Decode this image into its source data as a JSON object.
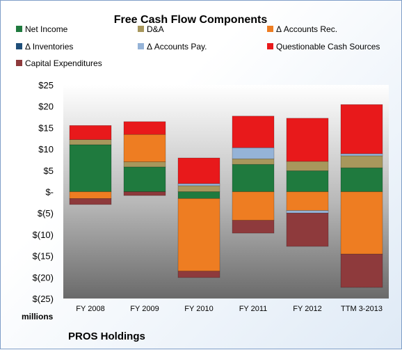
{
  "chart_data": {
    "type": "bar",
    "stacked": true,
    "title": "Free Cash Flow Components",
    "ylabel": "millions",
    "footer": "PROS Holdings",
    "categories": [
      "FY 2008",
      "FY 2009",
      "FY 2010",
      "FY 2011",
      "FY 2012",
      "TTM 3-2013"
    ],
    "ylim": [
      -25,
      25
    ],
    "yticks": [
      25,
      20,
      15,
      10,
      5,
      0,
      -5,
      -10,
      -15,
      -20,
      -25
    ],
    "ytick_labels": [
      "$25",
      "$20",
      "$15",
      "$10",
      "$5",
      "$-",
      "$(5)",
      "$(10)",
      "$(15)",
      "$(20)",
      "$(25)"
    ],
    "grid": false,
    "legend_position": "top",
    "series": [
      {
        "name": "Net Income",
        "color": "#1f7a3e",
        "values": [
          11.0,
          5.8,
          -1.6,
          6.4,
          4.9,
          5.6
        ]
      },
      {
        "name": "D&A",
        "color": "#a8975c",
        "values": [
          1.2,
          1.2,
          1.4,
          1.3,
          2.2,
          2.8
        ]
      },
      {
        "name": "Δ Accounts Rec.",
        "color": "#ee7d22",
        "values": [
          -1.6,
          6.4,
          -17.0,
          -6.7,
          -4.4,
          -14.6
        ]
      },
      {
        "name": "Δ Inventories",
        "color": "#1f4e79",
        "values": [
          0,
          0,
          0,
          0,
          0,
          0
        ]
      },
      {
        "name": "Δ Accounts Pay.",
        "color": "#95b3d7",
        "values": [
          0,
          0,
          0.5,
          2.6,
          -0.6,
          0.5
        ]
      },
      {
        "name": "Questionable Cash Sources",
        "color": "#e8191b",
        "values": [
          3.3,
          3.0,
          6.0,
          7.4,
          10.1,
          11.5
        ]
      },
      {
        "name": "Capital Expenditures",
        "color": "#8e3a3c",
        "values": [
          -1.4,
          -0.9,
          -1.5,
          -3.0,
          -7.8,
          -7.8
        ]
      }
    ]
  }
}
